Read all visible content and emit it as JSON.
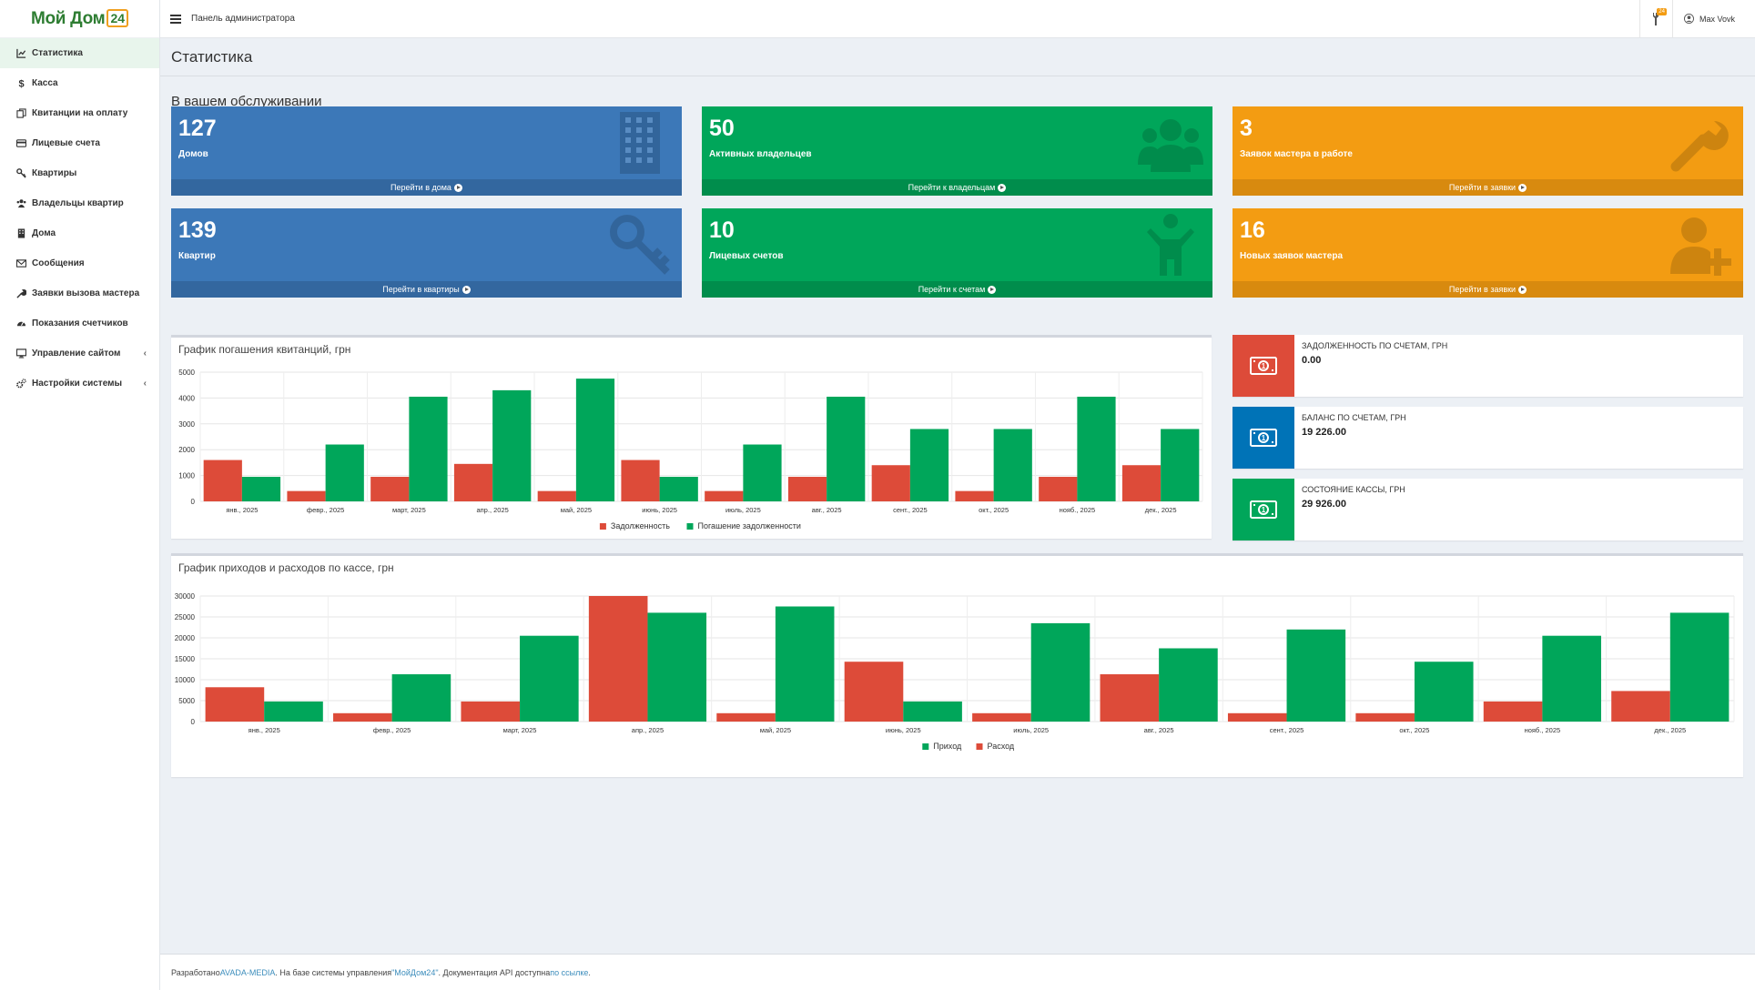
{
  "brand": {
    "name": "Мой Дом",
    "suffix": "24"
  },
  "header": {
    "title": "Панель администратора",
    "notifications": "24",
    "user": "Max Vovk"
  },
  "sidebar": {
    "items": [
      {
        "label": "Статистика",
        "icon": "chart-line-icon",
        "active": true
      },
      {
        "label": "Касса",
        "icon": "dollar-icon"
      },
      {
        "label": "Квитанции на оплату",
        "icon": "files-icon"
      },
      {
        "label": "Лицевые счета",
        "icon": "credit-card-icon"
      },
      {
        "label": "Квартиры",
        "icon": "key-icon"
      },
      {
        "label": "Владельцы квартир",
        "icon": "users-icon"
      },
      {
        "label": "Дома",
        "icon": "building-icon"
      },
      {
        "label": "Сообщения",
        "icon": "envelope-icon"
      },
      {
        "label": "Заявки вызова мастера",
        "icon": "wrench-icon"
      },
      {
        "label": "Показания счетчиков",
        "icon": "dashboard-icon"
      },
      {
        "label": "Управление сайтом",
        "icon": "desktop-icon",
        "submenu": true
      },
      {
        "label": "Настройки системы",
        "icon": "cogs-icon",
        "submenu": true
      }
    ]
  },
  "page": {
    "title": "Статистика",
    "section": "В вашем обслуживании"
  },
  "tiles": [
    {
      "value": "127",
      "label": "Домов",
      "link": "Перейти в дома",
      "color": "#3c78b8",
      "icon": "building-icon"
    },
    {
      "value": "50",
      "label": "Активных владельцев",
      "link": "Перейти к владельцам",
      "color": "#00a65a",
      "icon": "users-icon"
    },
    {
      "value": "3",
      "label": "Заявок мастера в работе",
      "link": "Перейти в заявки",
      "color": "#f39c12",
      "icon": "wrench-icon"
    },
    {
      "value": "139",
      "label": "Квартир",
      "link": "Перейти в квартиры",
      "color": "#3c78b8",
      "icon": "key-icon"
    },
    {
      "value": "10",
      "label": "Лицевых счетов",
      "link": "Перейти к счетам",
      "color": "#00a65a",
      "icon": "child-icon"
    },
    {
      "value": "16",
      "label": "Новых заявок мастера",
      "link": "Перейти в заявки",
      "color": "#f39c12",
      "icon": "user-plus-icon"
    }
  ],
  "info_boxes": [
    {
      "label": "ЗАДОЛЖЕННОСТЬ ПО СЧЕТАМ, ГРН",
      "value": "0.00",
      "color": "#dd4b39",
      "icon": "money-icon"
    },
    {
      "label": "БАЛАНС ПО СЧЕТАМ, ГРН",
      "value": "19 226.00",
      "color": "#0073b7",
      "icon": "money-icon"
    },
    {
      "label": "СОСТОЯНИЕ КАССЫ, ГРН",
      "value": "29 926.00",
      "color": "#00a65a",
      "icon": "money-icon"
    }
  ],
  "chart_data": [
    {
      "type": "bar",
      "title": "График погашения квитанций, грн",
      "categories": [
        "янв., 2025",
        "февр., 2025",
        "март, 2025",
        "апр., 2025",
        "май, 2025",
        "июнь, 2025",
        "июль, 2025",
        "авг., 2025",
        "сент., 2025",
        "окт., 2025",
        "нояб., 2025",
        "дек., 2025"
      ],
      "series": [
        {
          "name": "Задолженность",
          "color": "#dd4b39",
          "values": [
            1600,
            400,
            950,
            1450,
            400,
            1600,
            400,
            950,
            1400,
            400,
            950,
            1400
          ]
        },
        {
          "name": "Погашение задолженности",
          "color": "#00a65a",
          "values": [
            950,
            2200,
            4050,
            4300,
            4750,
            950,
            2200,
            4050,
            2800,
            2800,
            4050,
            2800
          ]
        }
      ],
      "yticks": [
        0,
        1000,
        2000,
        3000,
        4000,
        5000
      ],
      "ylim": [
        0,
        5000
      ],
      "grid": true,
      "legend": "bottom"
    },
    {
      "type": "bar",
      "title": "График приходов и расходов по кассе, грн",
      "categories": [
        "янв., 2025",
        "февр., 2025",
        "март, 2025",
        "апр., 2025",
        "май, 2025",
        "июнь, 2025",
        "июль, 2025",
        "авг., 2025",
        "сент., 2025",
        "окт., 2025",
        "нояб., 2025",
        "дек., 2025"
      ],
      "series": [
        {
          "name": "Расход",
          "color": "#dd4b39",
          "values": [
            8200,
            2000,
            4800,
            30000,
            2000,
            14300,
            2000,
            11300,
            2000,
            2000,
            4800,
            7300
          ]
        },
        {
          "name": "Приход",
          "color": "#00a65a",
          "values": [
            4800,
            11300,
            20500,
            26000,
            27500,
            4800,
            23500,
            17500,
            22000,
            14300,
            20500,
            26000
          ]
        }
      ],
      "legend_order": [
        "Приход",
        "Расход"
      ],
      "yticks": [
        0,
        5000,
        10000,
        15000,
        20000,
        25000,
        30000
      ],
      "ylim": [
        0,
        30000
      ],
      "grid": true,
      "legend": "bottom"
    }
  ],
  "footer": {
    "prefix": "Разработано ",
    "dev": "AVADA-MEDIA",
    "middle": ". На базе системы управления ",
    "product": "\"МойДом24\"",
    "api": ". Документация API доступна ",
    "api_link": "по ссылке",
    "end": "."
  }
}
